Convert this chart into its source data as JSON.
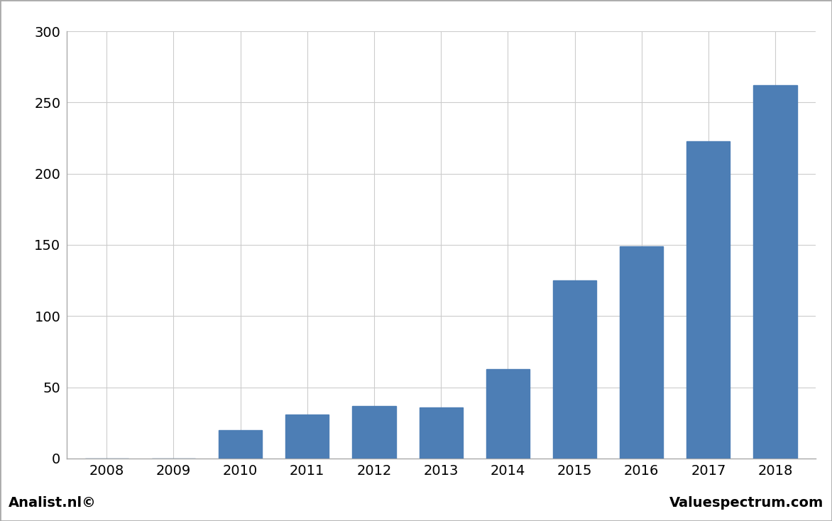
{
  "categories": [
    "2008",
    "2009",
    "2010",
    "2011",
    "2012",
    "2013",
    "2014",
    "2015",
    "2016",
    "2017",
    "2018"
  ],
  "values": [
    0,
    0,
    20,
    31,
    37,
    36,
    63,
    125,
    149,
    223,
    262
  ],
  "bar_color": "#4d7eb5",
  "background_color": "#ffffff",
  "plot_background_color": "#ffffff",
  "footer_background_color": "#d9d9d9",
  "grid_color": "#cccccc",
  "border_color": "#aaaaaa",
  "ylim": [
    0,
    300
  ],
  "yticks": [
    0,
    50,
    100,
    150,
    200,
    250,
    300
  ],
  "tick_fontsize": 14,
  "footer_left": "Analist.nl©",
  "footer_right": "Valuespectrum.com",
  "footer_fontsize": 14,
  "bar_width": 0.65
}
